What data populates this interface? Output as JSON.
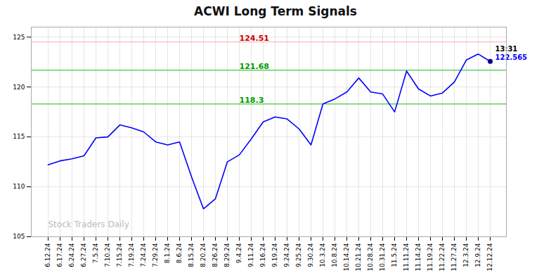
{
  "chart_data": {
    "type": "line",
    "title": "ACWI Long Term Signals",
    "categories": [
      "6.12.24",
      "6.17.24",
      "6.24.24",
      "6.27.24",
      "7.5.24",
      "7.10.24",
      "7.15.24",
      "7.19.24",
      "7.24.24",
      "7.29.24",
      "8.1.24",
      "8.6.24",
      "8.15.24",
      "8.20.24",
      "8.26.24",
      "8.29.24",
      "9.4.24",
      "9.11.24",
      "9.16.24",
      "9.19.24",
      "9.24.24",
      "9.25.24",
      "9.30.24",
      "10.3.24",
      "10.8.24",
      "10.14.24",
      "10.21.24",
      "10.28.24",
      "10.31.24",
      "11.5.24",
      "11.11.24",
      "11.14.24",
      "11.19.24",
      "11.22.24",
      "11.27.24",
      "12.3.24",
      "12.9.24",
      "12.12.24"
    ],
    "values": [
      112.2,
      112.6,
      112.8,
      113.1,
      114.9,
      115.0,
      116.2,
      115.9,
      115.5,
      114.5,
      114.2,
      114.5,
      111.0,
      107.8,
      108.8,
      112.5,
      113.2,
      114.8,
      116.5,
      117.0,
      116.8,
      115.8,
      114.2,
      118.3,
      118.8,
      119.5,
      120.9,
      119.5,
      119.3,
      117.5,
      121.6,
      119.8,
      119.1,
      119.4,
      120.5,
      122.7,
      123.3,
      122.565
    ],
    "color": "blue",
    "hlines": [
      {
        "value": 124.51,
        "label": "124.51",
        "color": "#ffaaaa",
        "label_color": "#cc0000"
      },
      {
        "value": 121.68,
        "label": "121.68",
        "color": "#66cc66",
        "label_color": "#009900"
      },
      {
        "value": 118.3,
        "label": "118.3",
        "color": "#66cc66",
        "label_color": "#009900"
      }
    ],
    "last_point": {
      "value": 122.565,
      "label": "122.565",
      "label_color": "blue",
      "time_label": "13:31",
      "time_label_color": "black",
      "color": "#00008b"
    },
    "watermark": {
      "text": "Stock Traders Daily",
      "color": "#bbbbbb"
    },
    "ylim": [
      105,
      126
    ],
    "yticks": [
      105,
      110,
      115,
      120,
      125
    ],
    "grid": true
  }
}
